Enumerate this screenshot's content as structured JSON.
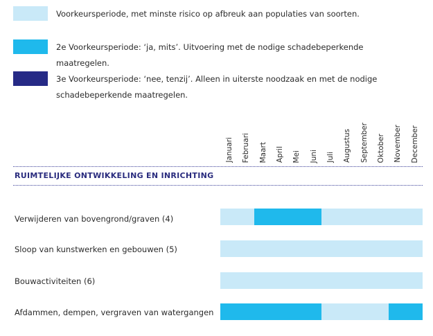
{
  "colors": {
    "light": "#c9e9f8",
    "medium": "#1fb9ec",
    "dark": "#262a86"
  },
  "legend": [
    {
      "color": "light",
      "text": "Voorkeursperiode, met minste risico op afbreuk aan populaties van soorten."
    },
    {
      "color": "medium",
      "text": "2e Voorkeursperiode: ‘ja, mits’. Uitvoering met de nodige schadebeperkende maatregelen."
    },
    {
      "color": "dark",
      "text": "3e Voorkeursperiode: ‘nee, tenzij’. Alleen in uiterste noodzaak en met de nodige schadebeperkende maatregelen."
    }
  ],
  "months": [
    "Januari",
    "Februari",
    "Maart",
    "April",
    "Mei",
    "Juni",
    "Juli",
    "Augustus",
    "September",
    "Oktober",
    "November",
    "December"
  ],
  "section_title": "RUIMTELIJKE ONTWIKKELING EN INRICHTING",
  "rows": [
    {
      "label": "Verwijderen van bovengrond/graven (4)",
      "months": [
        "light",
        "light",
        "medium",
        "medium",
        "medium",
        "medium",
        "light",
        "light",
        "light",
        "light",
        "light",
        "light"
      ]
    },
    {
      "label": "Sloop van kunstwerken en gebouwen (5)",
      "months": [
        "light",
        "light",
        "light",
        "light",
        "light",
        "light",
        "light",
        "light",
        "light",
        "light",
        "light",
        "light"
      ]
    },
    {
      "label": "Bouwactiviteiten (6)",
      "months": [
        "light",
        "light",
        "light",
        "light",
        "light",
        "light",
        "light",
        "light",
        "light",
        "light",
        "light",
        "light"
      ]
    },
    {
      "label": "Afdammen, dempen, vergraven van watergangen",
      "months": [
        "medium",
        "medium",
        "medium",
        "medium",
        "medium",
        "medium",
        "light",
        "light",
        "light",
        "light",
        "medium",
        "medium"
      ]
    }
  ]
}
